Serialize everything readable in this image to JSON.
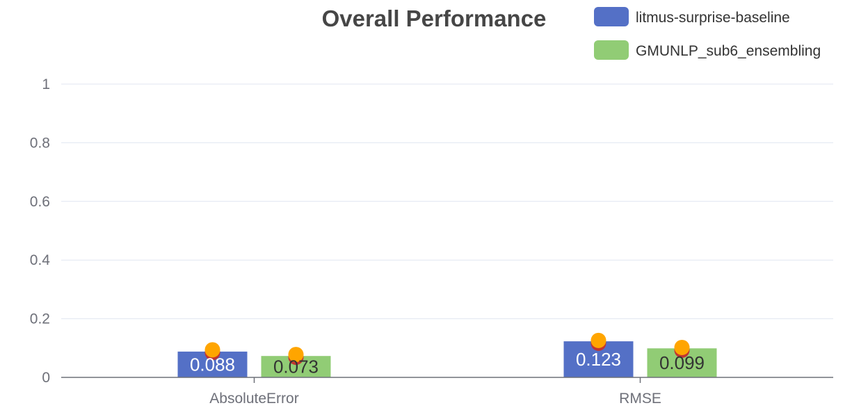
{
  "chart_data": {
    "type": "bar",
    "title": "Overall Performance",
    "categories": [
      "AbsoluteError",
      "RMSE"
    ],
    "series": [
      {
        "name": "litmus-surprise-baseline",
        "values": [
          0.088,
          0.123
        ],
        "labels": [
          "0.088",
          "0.123"
        ],
        "color": "#5470c6",
        "label_color": "#ffffff",
        "markers": [
          0.094,
          0.126
        ]
      },
      {
        "name": "GMUNLP_sub6_ensembling",
        "values": [
          0.073,
          0.099
        ],
        "labels": [
          "0.073",
          "0.099"
        ],
        "color": "#91cc75",
        "label_color": "#333333",
        "markers": [
          0.078,
          0.102
        ]
      }
    ],
    "ylim": [
      0,
      1
    ],
    "yticks": [
      0,
      0.2,
      0.4,
      0.6,
      0.8,
      1
    ],
    "ytick_labels": [
      "0",
      "0.2",
      "0.4",
      "0.6",
      "0.8",
      "1"
    ],
    "grid": true,
    "legend_position": "top-right",
    "marker_color": "#ffa500",
    "marker_shadow_color": "#c23531",
    "xlabel": "",
    "ylabel": ""
  }
}
